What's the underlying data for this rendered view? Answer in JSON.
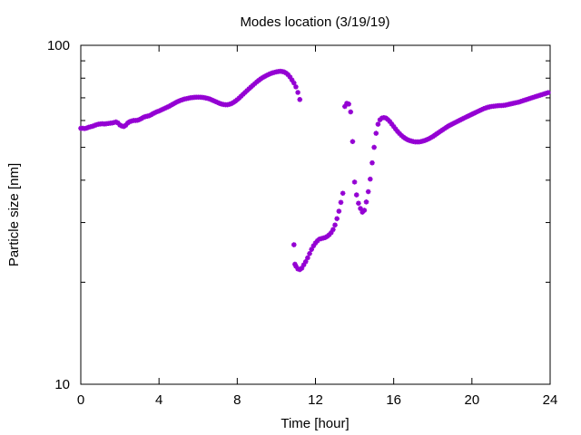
{
  "chart_data": {
    "type": "scatter",
    "title": "Modes location (3/19/19)",
    "xlabel": "Time [hour]",
    "ylabel": "Particle size [nm]",
    "xlim": [
      0,
      24
    ],
    "ylim": [
      10,
      100
    ],
    "yscale": "log",
    "x_ticks": [
      0,
      4,
      8,
      12,
      16,
      20,
      24
    ],
    "x_tick_labels": [
      "0",
      "4",
      "8",
      "12",
      "16",
      "20",
      "24"
    ],
    "y_tick_labels_major": [
      "10",
      "100"
    ],
    "y_minor_ticks": [
      20,
      30,
      40,
      50,
      60,
      70,
      80,
      90
    ],
    "grid": false,
    "legend": "none",
    "colors": {
      "series": "#9400d3",
      "axis": "#000000",
      "background": "#ffffff"
    },
    "marker": "asterisk",
    "series": [
      {
        "points": [
          [
            0.0,
            56.9
          ],
          [
            0.1,
            56.9
          ],
          [
            0.2,
            56.8
          ],
          [
            0.3,
            57.0
          ],
          [
            0.4,
            57.3
          ],
          [
            0.5,
            57.5
          ],
          [
            0.6,
            57.7
          ],
          [
            0.7,
            58.0
          ],
          [
            0.8,
            58.3
          ],
          [
            0.9,
            58.5
          ],
          [
            1.0,
            58.6
          ],
          [
            1.1,
            58.7
          ],
          [
            1.2,
            58.6
          ],
          [
            1.3,
            58.7
          ],
          [
            1.4,
            58.8
          ],
          [
            1.5,
            58.9
          ],
          [
            1.6,
            59.0
          ],
          [
            1.7,
            59.2
          ],
          [
            1.8,
            59.4
          ],
          [
            1.9,
            59.0
          ],
          [
            2.0,
            58.2
          ],
          [
            2.1,
            57.8
          ],
          [
            2.2,
            57.6
          ],
          [
            2.3,
            58.1
          ],
          [
            2.4,
            59.0
          ],
          [
            2.5,
            59.5
          ],
          [
            2.6,
            59.8
          ],
          [
            2.7,
            60.0
          ],
          [
            2.8,
            60.0
          ],
          [
            2.9,
            60.1
          ],
          [
            3.0,
            60.4
          ],
          [
            3.1,
            60.8
          ],
          [
            3.2,
            61.3
          ],
          [
            3.3,
            61.6
          ],
          [
            3.4,
            61.8
          ],
          [
            3.5,
            62.0
          ],
          [
            3.6,
            62.4
          ],
          [
            3.7,
            62.9
          ],
          [
            3.8,
            63.3
          ],
          [
            3.9,
            63.7
          ],
          [
            4.0,
            64.0
          ],
          [
            4.1,
            64.4
          ],
          [
            4.2,
            64.8
          ],
          [
            4.3,
            65.2
          ],
          [
            4.4,
            65.6
          ],
          [
            4.5,
            66.0
          ],
          [
            4.6,
            66.5
          ],
          [
            4.7,
            67.0
          ],
          [
            4.8,
            67.5
          ],
          [
            4.9,
            68.0
          ],
          [
            5.0,
            68.4
          ],
          [
            5.1,
            68.8
          ],
          [
            5.2,
            69.1
          ],
          [
            5.3,
            69.4
          ],
          [
            5.4,
            69.6
          ],
          [
            5.5,
            69.8
          ],
          [
            5.6,
            70.0
          ],
          [
            5.7,
            70.1
          ],
          [
            5.8,
            70.2
          ],
          [
            5.9,
            70.3
          ],
          [
            6.0,
            70.3
          ],
          [
            6.1,
            70.3
          ],
          [
            6.2,
            70.2
          ],
          [
            6.3,
            70.1
          ],
          [
            6.4,
            69.9
          ],
          [
            6.5,
            69.7
          ],
          [
            6.6,
            69.4
          ],
          [
            6.7,
            69.0
          ],
          [
            6.8,
            68.6
          ],
          [
            6.9,
            68.2
          ],
          [
            7.0,
            67.8
          ],
          [
            7.1,
            67.4
          ],
          [
            7.2,
            67.1
          ],
          [
            7.3,
            66.9
          ],
          [
            7.4,
            66.8
          ],
          [
            7.5,
            66.8
          ],
          [
            7.6,
            67.0
          ],
          [
            7.7,
            67.3
          ],
          [
            7.8,
            67.8
          ],
          [
            7.9,
            68.4
          ],
          [
            8.0,
            69.1
          ],
          [
            8.1,
            69.9
          ],
          [
            8.2,
            70.8
          ],
          [
            8.3,
            71.7
          ],
          [
            8.4,
            72.6
          ],
          [
            8.5,
            73.5
          ],
          [
            8.6,
            74.4
          ],
          [
            8.7,
            75.3
          ],
          [
            8.8,
            76.2
          ],
          [
            8.9,
            77.1
          ],
          [
            9.0,
            78.0
          ],
          [
            9.1,
            78.8
          ],
          [
            9.2,
            79.6
          ],
          [
            9.3,
            80.3
          ],
          [
            9.4,
            80.9
          ],
          [
            9.5,
            81.5
          ],
          [
            9.6,
            82.0
          ],
          [
            9.7,
            82.5
          ],
          [
            9.8,
            82.9
          ],
          [
            9.9,
            83.2
          ],
          [
            10.0,
            83.5
          ],
          [
            10.1,
            83.7
          ],
          [
            10.2,
            83.8
          ],
          [
            10.3,
            83.7
          ],
          [
            10.4,
            83.4
          ],
          [
            10.5,
            82.8
          ],
          [
            10.6,
            81.9
          ],
          [
            10.7,
            80.6
          ],
          [
            10.8,
            79.0
          ],
          [
            10.9,
            77.4
          ],
          [
            11.0,
            75.4
          ],
          [
            11.1,
            72.6
          ],
          [
            11.2,
            69.2
          ],
          [
            10.9,
            25.8
          ],
          [
            10.95,
            22.6
          ],
          [
            11.0,
            22.3
          ],
          [
            11.1,
            21.9
          ],
          [
            11.2,
            21.8
          ],
          [
            11.3,
            22.0
          ],
          [
            11.4,
            22.5
          ],
          [
            11.5,
            23.0
          ],
          [
            11.6,
            23.6
          ],
          [
            11.7,
            24.3
          ],
          [
            11.8,
            25.0
          ],
          [
            11.9,
            25.6
          ],
          [
            12.0,
            26.1
          ],
          [
            12.1,
            26.5
          ],
          [
            12.2,
            26.8
          ],
          [
            12.3,
            26.9
          ],
          [
            12.4,
            27.0
          ],
          [
            12.5,
            27.1
          ],
          [
            12.6,
            27.3
          ],
          [
            12.7,
            27.6
          ],
          [
            12.8,
            28.0
          ],
          [
            12.9,
            28.6
          ],
          [
            13.0,
            29.5
          ],
          [
            13.1,
            30.8
          ],
          [
            13.2,
            32.4
          ],
          [
            13.3,
            34.4
          ],
          [
            13.4,
            36.6
          ],
          [
            13.5,
            66.0
          ],
          [
            13.6,
            67.4
          ],
          [
            13.7,
            67.1
          ],
          [
            13.8,
            63.6
          ],
          [
            13.9,
            52.0
          ],
          [
            14.0,
            39.5
          ],
          [
            14.1,
            36.2
          ],
          [
            14.2,
            34.2
          ],
          [
            14.3,
            33.0
          ],
          [
            14.4,
            32.2
          ],
          [
            14.5,
            32.6
          ],
          [
            14.6,
            34.5
          ],
          [
            14.7,
            37.0
          ],
          [
            14.8,
            40.3
          ],
          [
            14.9,
            45.0
          ],
          [
            15.0,
            50.0
          ],
          [
            15.1,
            55.0
          ],
          [
            15.2,
            58.5
          ],
          [
            15.3,
            60.3
          ],
          [
            15.4,
            61.0
          ],
          [
            15.5,
            61.2
          ],
          [
            15.6,
            61.0
          ],
          [
            15.7,
            60.4
          ],
          [
            15.8,
            59.6
          ],
          [
            15.9,
            58.6
          ],
          [
            16.0,
            57.6
          ],
          [
            16.1,
            56.6
          ],
          [
            16.2,
            55.7
          ],
          [
            16.3,
            54.9
          ],
          [
            16.4,
            54.2
          ],
          [
            16.5,
            53.6
          ],
          [
            16.6,
            53.1
          ],
          [
            16.7,
            52.7
          ],
          [
            16.8,
            52.4
          ],
          [
            16.9,
            52.2
          ],
          [
            17.0,
            52.0
          ],
          [
            17.1,
            51.9
          ],
          [
            17.2,
            51.9
          ],
          [
            17.3,
            51.9
          ],
          [
            17.4,
            52.0
          ],
          [
            17.5,
            52.2
          ],
          [
            17.6,
            52.4
          ],
          [
            17.7,
            52.7
          ],
          [
            17.8,
            53.0
          ],
          [
            17.9,
            53.4
          ],
          [
            18.0,
            53.8
          ],
          [
            18.1,
            54.3
          ],
          [
            18.2,
            54.8
          ],
          [
            18.3,
            55.3
          ],
          [
            18.4,
            55.8
          ],
          [
            18.5,
            56.3
          ],
          [
            18.6,
            56.8
          ],
          [
            18.7,
            57.3
          ],
          [
            18.8,
            57.8
          ],
          [
            18.9,
            58.2
          ],
          [
            19.0,
            58.6
          ],
          [
            19.1,
            59.0
          ],
          [
            19.2,
            59.4
          ],
          [
            19.3,
            59.8
          ],
          [
            19.4,
            60.2
          ],
          [
            19.5,
            60.6
          ],
          [
            19.6,
            61.0
          ],
          [
            19.7,
            61.4
          ],
          [
            19.8,
            61.8
          ],
          [
            19.9,
            62.2
          ],
          [
            20.0,
            62.6
          ],
          [
            20.1,
            63.0
          ],
          [
            20.2,
            63.4
          ],
          [
            20.3,
            63.8
          ],
          [
            20.4,
            64.2
          ],
          [
            20.5,
            64.6
          ],
          [
            20.6,
            65.0
          ],
          [
            20.7,
            65.3
          ],
          [
            20.8,
            65.6
          ],
          [
            20.9,
            65.8
          ],
          [
            21.0,
            66.0
          ],
          [
            21.1,
            66.1
          ],
          [
            21.2,
            66.2
          ],
          [
            21.3,
            66.3
          ],
          [
            21.4,
            66.4
          ],
          [
            21.5,
            66.4
          ],
          [
            21.6,
            66.5
          ],
          [
            21.7,
            66.6
          ],
          [
            21.8,
            66.8
          ],
          [
            21.9,
            67.0
          ],
          [
            22.0,
            67.2
          ],
          [
            22.1,
            67.4
          ],
          [
            22.2,
            67.6
          ],
          [
            22.3,
            67.8
          ],
          [
            22.4,
            68.0
          ],
          [
            22.5,
            68.3
          ],
          [
            22.6,
            68.6
          ],
          [
            22.7,
            68.9
          ],
          [
            22.8,
            69.2
          ],
          [
            22.9,
            69.5
          ],
          [
            23.0,
            69.8
          ],
          [
            23.1,
            70.1
          ],
          [
            23.2,
            70.4
          ],
          [
            23.3,
            70.7
          ],
          [
            23.4,
            71.0
          ],
          [
            23.5,
            71.3
          ],
          [
            23.6,
            71.6
          ],
          [
            23.7,
            71.9
          ],
          [
            23.8,
            72.2
          ],
          [
            23.9,
            72.5
          ]
        ]
      }
    ]
  }
}
